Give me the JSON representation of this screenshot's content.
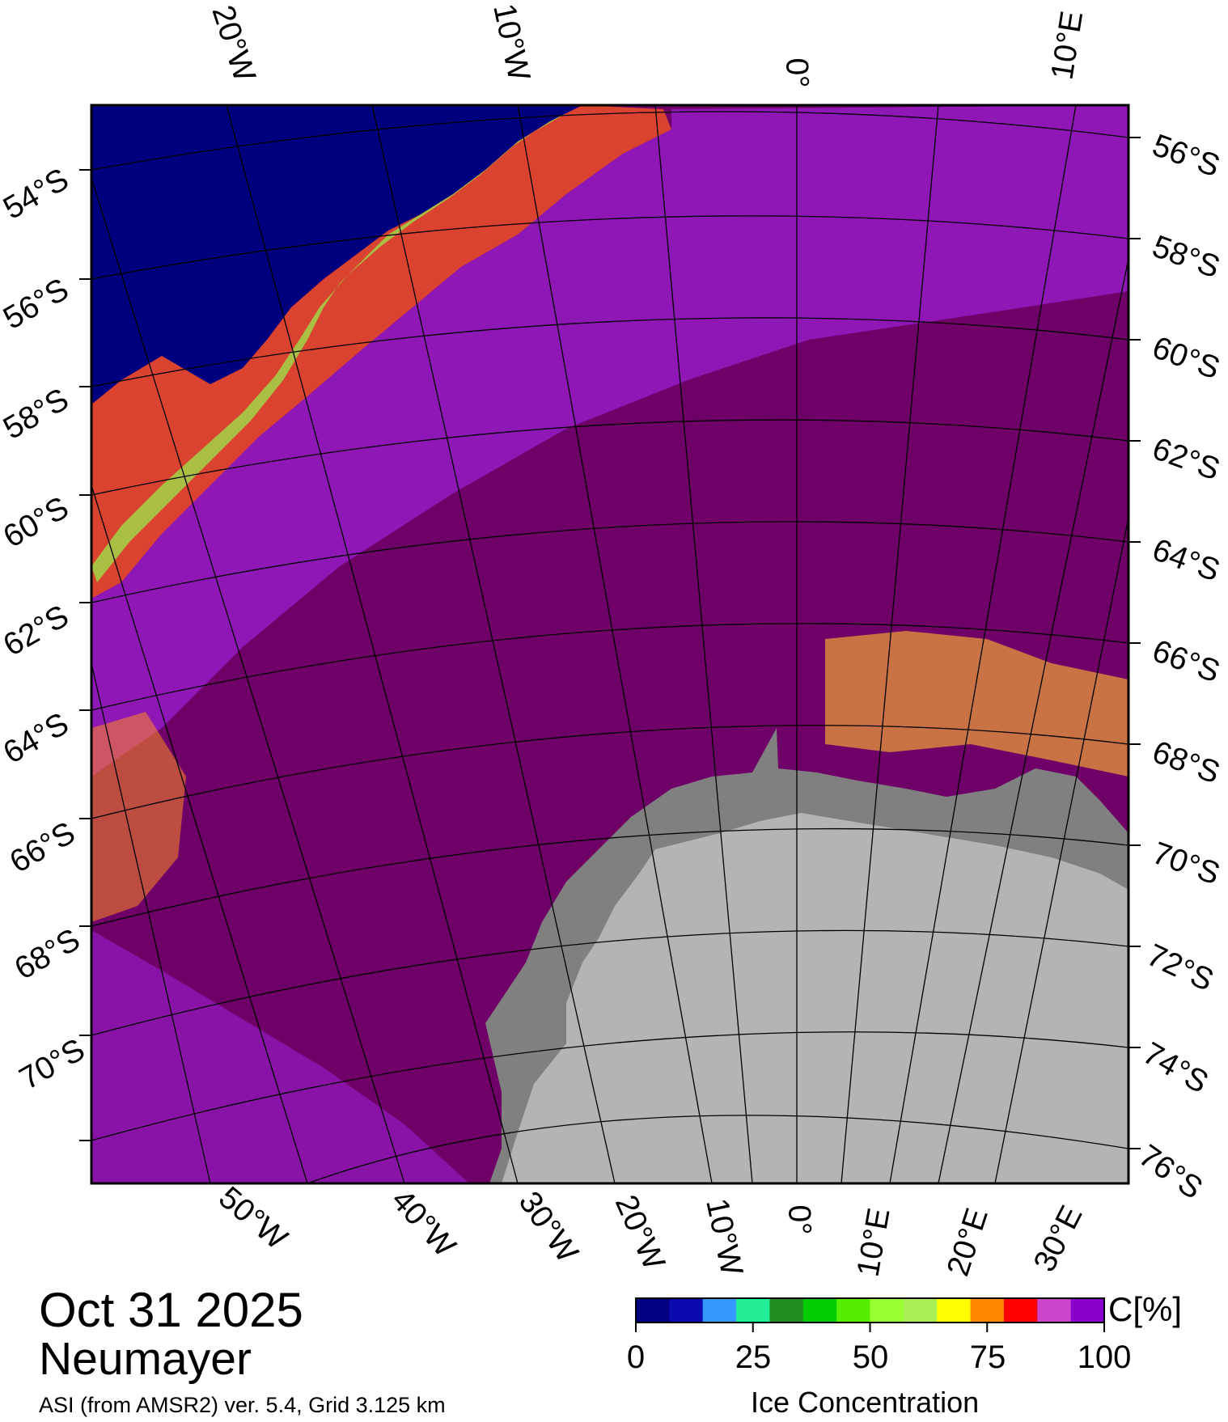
{
  "map": {
    "date": "Oct 31 2025",
    "station": "Neumayer",
    "source": "ASI (from AMSR2) ver. 5.4,  Grid 3.125 km",
    "top_lon_labels": [
      "20°W",
      "10°W",
      "0°",
      "10°E"
    ],
    "bottom_lon_labels": [
      "50°W",
      "40°W",
      "30°W",
      "20°W",
      "10°W",
      "0°",
      "10°E",
      "20°E",
      "30°E"
    ],
    "left_lat_labels": [
      "54°S",
      "56°S",
      "58°S",
      "60°S",
      "62°S",
      "64°S",
      "66°S",
      "68°S",
      "70°S"
    ],
    "right_lat_labels": [
      "56°S",
      "58°S",
      "60°S",
      "62°S",
      "64°S",
      "66°S",
      "68°S",
      "70°S",
      "72°S",
      "74°S",
      "76°S"
    ],
    "colors": {
      "open_water": "#00007f",
      "ice_high": "#6e0068",
      "ice_mid": "#9a1fd0",
      "land_ice": "#b4b4b4",
      "ice_shelf": "#808080"
    }
  },
  "colorbar": {
    "title": "Ice Concentration",
    "unit": "C[%]",
    "ticks": [
      "0",
      "25",
      "50",
      "75",
      "100"
    ],
    "colors": [
      "#000080",
      "#0a0ab0",
      "#3399ff",
      "#22ee99",
      "#228b22",
      "#00cc00",
      "#55ee00",
      "#99ff33",
      "#aaee55",
      "#ffff00",
      "#ff8800",
      "#ff0000",
      "#cc44cc",
      "#8800cc"
    ]
  }
}
